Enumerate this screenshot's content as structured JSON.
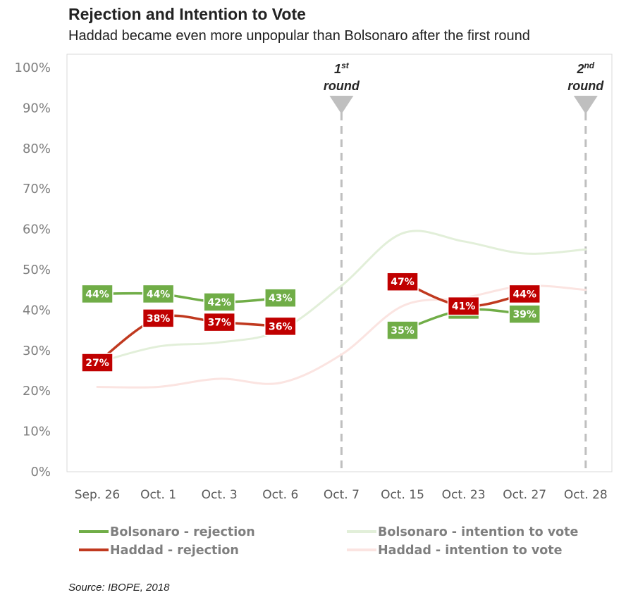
{
  "header": {
    "title": "Rejection and Intention to Vote",
    "subtitle": "Haddad became even more unpopular than Bolsonaro after the first round"
  },
  "footer": {
    "source": "Source: IBOPE, 2018"
  },
  "chart_data": {
    "type": "line",
    "title": "Rejection and Intention to Vote",
    "subtitle": "Haddad became even more unpopular than Bolsonaro after the first round",
    "categories": [
      "Sep. 26",
      "Oct. 1",
      "Oct. 3",
      "Oct. 6",
      "Oct. 7",
      "Oct. 15",
      "Oct. 23",
      "Oct. 27",
      "Oct. 28"
    ],
    "yticks": [
      "0%",
      "10%",
      "20%",
      "30%",
      "40%",
      "50%",
      "60%",
      "70%",
      "80%",
      "90%",
      "100%"
    ],
    "ylim": [
      0,
      100
    ],
    "grid": false,
    "legend_position": "bottom",
    "series": [
      {
        "name": "Bolsonaro - intention to vote",
        "color": "#e2efd9",
        "labeled": false,
        "smooth": true,
        "values": [
          27,
          31,
          32,
          35,
          46,
          59,
          57,
          54,
          55
        ]
      },
      {
        "name": "Haddad - intention to vote",
        "color": "#fbe4e1",
        "labeled": false,
        "smooth": true,
        "values": [
          21,
          21,
          23,
          22,
          29,
          41,
          43,
          46,
          45
        ]
      },
      {
        "name": "Bolsonaro - rejection",
        "color": "#70ad47",
        "labelBg": "#70ad47",
        "labeled": true,
        "smooth": true,
        "values": [
          44,
          44,
          42,
          43,
          null,
          35,
          40,
          39,
          null
        ],
        "labels": [
          "44%",
          "44%",
          "42%",
          "43%",
          null,
          "35%",
          "40%",
          "39%",
          null
        ]
      },
      {
        "name": "Haddad - rejection",
        "color": "#c0391f",
        "labelBg": "#c00000",
        "labeled": true,
        "smooth": true,
        "values": [
          27,
          38,
          37,
          36,
          null,
          47,
          41,
          44,
          null
        ],
        "labels": [
          "27%",
          "38%",
          "37%",
          "36%",
          null,
          "47%",
          "41%",
          "44%",
          null
        ]
      }
    ],
    "legend_order": [
      "Bolsonaro - rejection",
      "Bolsonaro - intention to vote",
      "Haddad - rejection",
      "Haddad - intention to vote"
    ],
    "annotations": [
      {
        "category": "Oct. 7",
        "text": "round",
        "ordinal": "1",
        "suffix": "st"
      },
      {
        "category": "Oct. 28",
        "text": "round",
        "ordinal": "2",
        "suffix": "nd"
      }
    ]
  }
}
